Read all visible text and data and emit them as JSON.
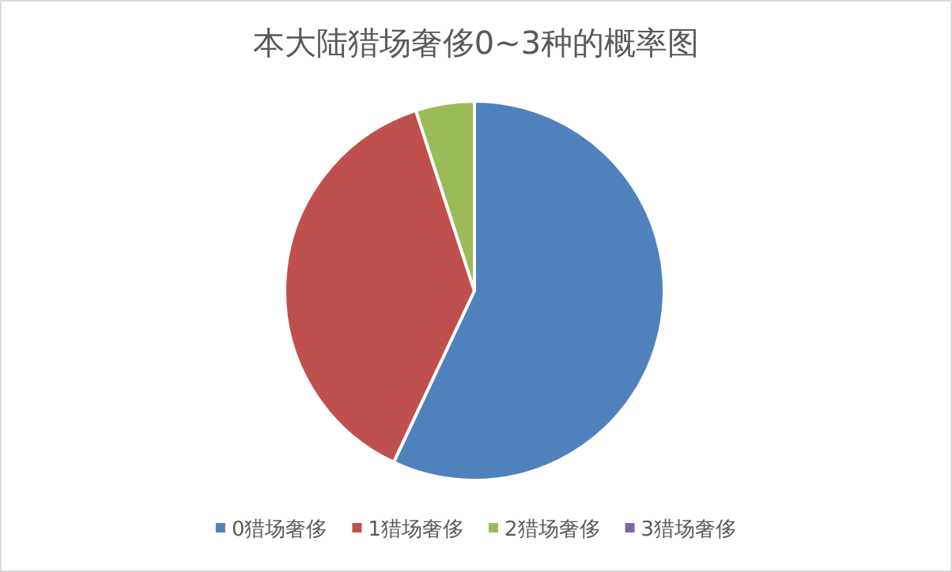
{
  "chart_data": {
    "type": "pie",
    "title": "本大陆猎场奢侈0~3种的概率图",
    "categories": [
      "0猎场奢侈",
      "1猎场奢侈",
      "2猎场奢侈",
      "3猎场奢侈"
    ],
    "values": [
      57,
      38,
      5,
      0
    ],
    "colors": [
      "#4f81bd",
      "#c0504d",
      "#9bbb59",
      "#8064a2"
    ],
    "legend": "bottom"
  }
}
